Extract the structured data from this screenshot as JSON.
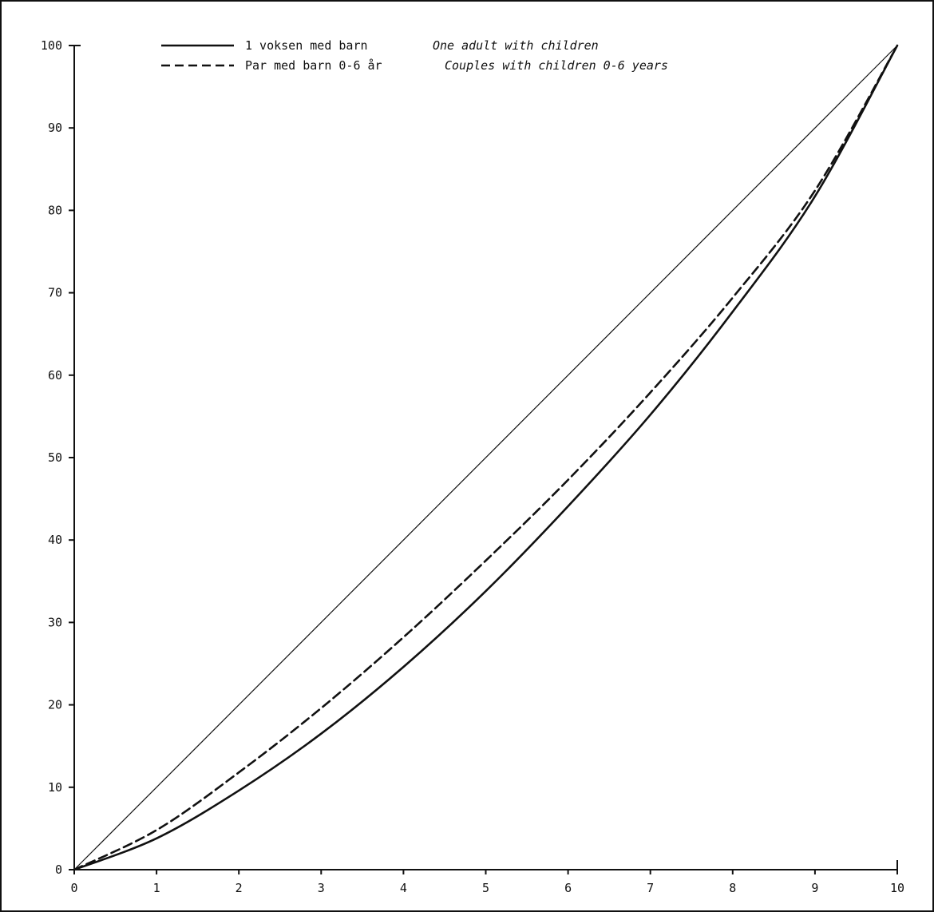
{
  "chart_data": {
    "type": "line",
    "title": "",
    "xlabel": "",
    "ylabel": "",
    "xlim": [
      0,
      10
    ],
    "ylim": [
      0,
      100
    ],
    "x_ticks": [
      "0",
      "1",
      "2",
      "3",
      "4",
      "5",
      "6",
      "7",
      "8",
      "9",
      "10"
    ],
    "y_ticks": [
      "0",
      "10",
      "20",
      "30",
      "40",
      "50",
      "60",
      "70",
      "80",
      "90",
      "100"
    ],
    "grid": false,
    "legend_position": "top-left",
    "x": [
      0,
      1,
      2,
      3,
      4,
      5,
      6,
      7,
      8,
      9,
      10
    ],
    "series": [
      {
        "name": "1 voksen med barn",
        "name_en": "One adult with children",
        "style": "solid",
        "values": [
          0,
          3.8,
          9.6,
          16.5,
          24.6,
          33.8,
          44.1,
          55.2,
          67.7,
          81.7,
          100
        ]
      },
      {
        "name": "Par med barn 0-6 år",
        "name_en": "Couples with children 0-6 years",
        "style": "dashed",
        "values": [
          0,
          4.8,
          11.8,
          19.6,
          28.2,
          37.5,
          47.3,
          57.9,
          69.4,
          82.4,
          100
        ]
      }
    ],
    "reference_line": {
      "style": "thin-solid",
      "values": [
        0,
        10,
        20,
        30,
        40,
        50,
        60,
        70,
        80,
        90,
        100
      ]
    },
    "colors": {
      "line": "#111111",
      "background": "#ffffff"
    }
  }
}
